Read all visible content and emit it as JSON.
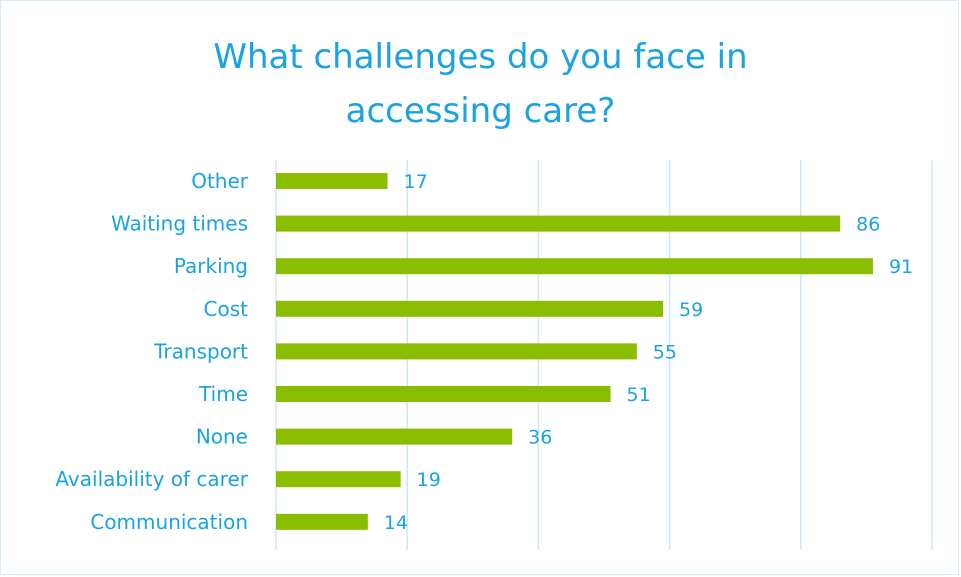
{
  "chart_data": {
    "type": "bar",
    "orientation": "horizontal",
    "title_lines": [
      "What challenges do you face in",
      "accessing care?"
    ],
    "categories": [
      "Other",
      "Waiting times",
      "Parking",
      "Cost",
      "Transport",
      "Time",
      "None",
      "Availability of carer",
      "Communication"
    ],
    "values": [
      17,
      86,
      91,
      59,
      55,
      51,
      36,
      19,
      14
    ],
    "xlim": [
      0,
      100
    ],
    "gridlines": [
      0,
      20,
      40,
      60,
      80,
      100
    ],
    "grid": true,
    "bar_color": "#8abd00",
    "text_color": "#1aa3e0",
    "grid_color": "#cfe7f3"
  }
}
